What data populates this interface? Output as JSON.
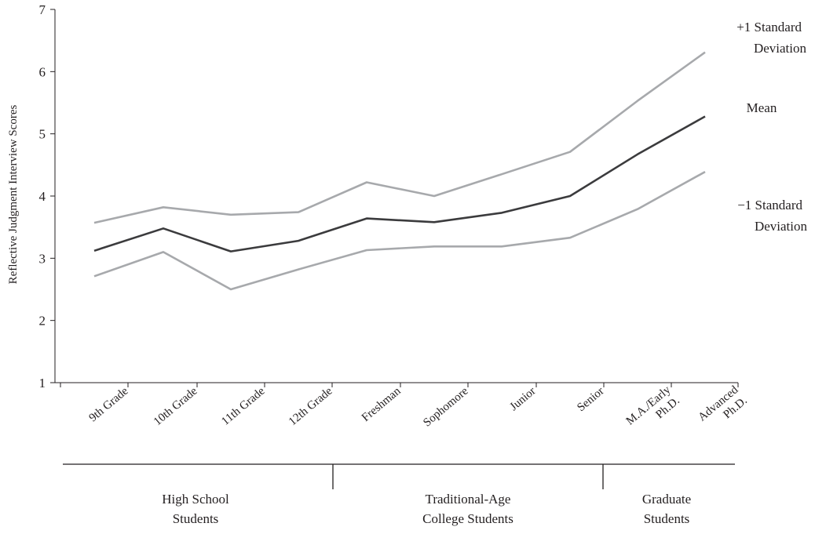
{
  "chart_data": {
    "type": "line",
    "ylabel": "Reflective Judgment Interview Scores",
    "ylim": [
      1,
      7
    ],
    "yticks": [
      1,
      2,
      3,
      4,
      5,
      6,
      7
    ],
    "categories": [
      "9th Grade",
      "10th Grade",
      "11th Grade",
      "12th Grade",
      "Freshman",
      "Sophomore",
      "Junior",
      "Senior",
      "M.A./Early Ph.D.",
      "Advanced Ph.D."
    ],
    "series": [
      {
        "name": "+1 Standard Deviation",
        "color": "#a7a9ac",
        "values": [
          3.57,
          3.82,
          3.7,
          3.74,
          4.22,
          4.0,
          4.35,
          4.71,
          5.53,
          6.31
        ]
      },
      {
        "name": "Mean",
        "color": "#3b3b3d",
        "values": [
          3.12,
          3.48,
          3.11,
          3.28,
          3.64,
          3.58,
          3.73,
          4.0,
          4.67,
          5.28
        ]
      },
      {
        "name": "−1 Standard Deviation",
        "color": "#a7a9ac",
        "values": [
          2.71,
          3.1,
          2.5,
          2.82,
          3.13,
          3.19,
          3.19,
          3.33,
          3.79,
          4.39
        ]
      }
    ],
    "groups": [
      {
        "label": "High School Students",
        "from": 0,
        "to": 3
      },
      {
        "label": "Traditional-Age College Students",
        "from": 4,
        "to": 7
      },
      {
        "label": "Graduate Students",
        "from": 8,
        "to": 9
      }
    ]
  }
}
